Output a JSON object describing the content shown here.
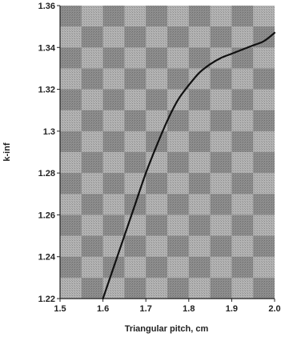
{
  "chart_data": {
    "type": "line",
    "title": "",
    "xlabel": "Triangular pitch, cm",
    "ylabel": "k-inf",
    "xlim": [
      1.5,
      2.0
    ],
    "ylim": [
      1.22,
      1.36
    ],
    "x_ticks": [
      "1.5",
      "1.6",
      "1.7",
      "1.8",
      "1.9",
      "2.0"
    ],
    "y_ticks": [
      "1.36",
      "1.34",
      "1.32",
      "1.3",
      "1.28",
      "1.26",
      "1.24",
      "1.22"
    ],
    "grid": false,
    "legend": "none",
    "colors": {
      "line": "#111111",
      "plot_background": "#a9a9a9",
      "background_check": "#8e8e8e"
    },
    "series": [
      {
        "x": [
          1.6,
          1.625,
          1.65,
          1.675,
          1.7,
          1.725,
          1.75,
          1.775,
          1.8,
          1.825,
          1.85,
          1.875,
          1.9,
          1.925,
          1.95,
          1.975,
          2.0
        ],
        "y": [
          1.22,
          1.235,
          1.25,
          1.265,
          1.28,
          1.293,
          1.305,
          1.315,
          1.322,
          1.328,
          1.332,
          1.335,
          1.337,
          1.339,
          1.341,
          1.343,
          1.347
        ]
      }
    ]
  }
}
